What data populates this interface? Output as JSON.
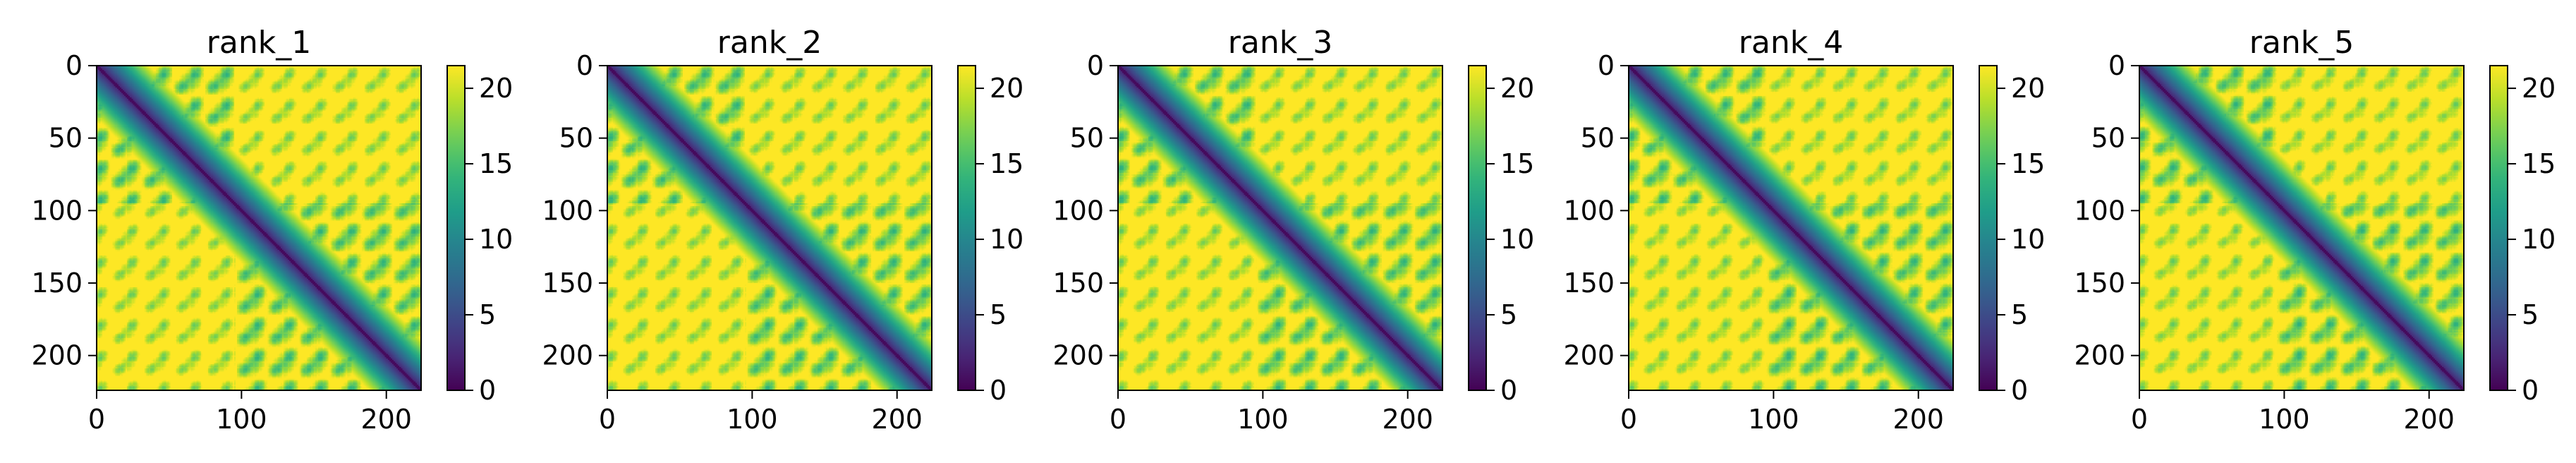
{
  "chart_data": {
    "type": "heatmap",
    "colormap": "viridis",
    "colormap_stops": [
      "#440154",
      "#482878",
      "#3e4989",
      "#31688e",
      "#26828e",
      "#1f9e89",
      "#35b779",
      "#6ece58",
      "#b5de2b",
      "#fde725"
    ],
    "value_range": [
      0,
      21.5
    ],
    "grid": false,
    "n_residues": 224,
    "panels": [
      {
        "title": "rank_1",
        "xlim": [
          0,
          224
        ],
        "ylim": [
          224,
          0
        ],
        "xticks": [
          0,
          100,
          200
        ],
        "yticks": [
          0,
          50,
          100,
          150,
          200
        ],
        "colorbar_ticks": [
          0,
          5,
          10,
          15,
          20
        ]
      },
      {
        "title": "rank_2",
        "xlim": [
          0,
          224
        ],
        "ylim": [
          224,
          0
        ],
        "xticks": [
          0,
          100,
          200
        ],
        "yticks": [
          0,
          50,
          100,
          150,
          200
        ],
        "colorbar_ticks": [
          0,
          5,
          10,
          15,
          20
        ]
      },
      {
        "title": "rank_3",
        "xlim": [
          0,
          224
        ],
        "ylim": [
          224,
          0
        ],
        "xticks": [
          0,
          100,
          200
        ],
        "yticks": [
          0,
          50,
          100,
          150,
          200
        ],
        "colorbar_ticks": [
          0,
          5,
          10,
          15,
          20
        ]
      },
      {
        "title": "rank_4",
        "xlim": [
          0,
          224
        ],
        "ylim": [
          224,
          0
        ],
        "xticks": [
          0,
          100,
          200
        ],
        "yticks": [
          0,
          50,
          100,
          150,
          200
        ],
        "colorbar_ticks": [
          0,
          5,
          10,
          15,
          20
        ]
      },
      {
        "title": "rank_5",
        "xlim": [
          0,
          224
        ],
        "ylim": [
          224,
          0
        ],
        "xticks": [
          0,
          100,
          200
        ],
        "yticks": [
          0,
          50,
          100,
          150,
          200
        ],
        "colorbar_ticks": [
          0,
          5,
          10,
          15,
          20
        ]
      }
    ]
  }
}
